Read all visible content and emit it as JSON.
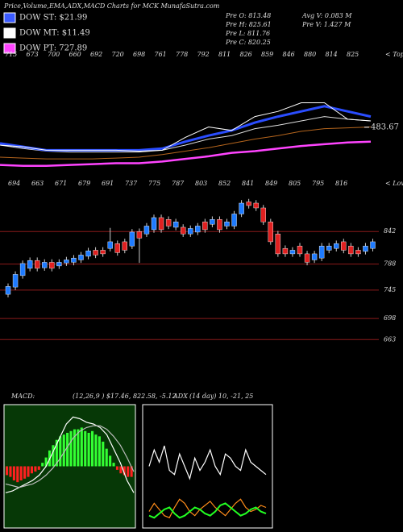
{
  "header": {
    "title": "Price,Volume,EMA,ADX,MACD Charts for MCK MunafaSutra.com",
    "legend": [
      {
        "label": "DOW ST: $21.99",
        "color": "#3b5bff"
      },
      {
        "label": "DOW MT: $11.49",
        "color": "#ffffff"
      },
      {
        "label": "DOW PT: 727.89",
        "color": "#ff44ff"
      }
    ],
    "stats": [
      "Pre  O: 813.48",
      "Pre  H: 825.61",
      "Pre  L: 811.76",
      "Pre  C: 820.25"
    ],
    "stats2": [
      "Avg V: 0.083 M",
      "Pre  V: 1.427 M"
    ]
  },
  "chart_data": [
    {
      "type": "line",
      "tops_label": "< Tops",
      "lows_label": "< Lows",
      "tops": [
        715,
        673,
        700,
        660,
        692,
        720,
        698,
        761,
        778,
        792,
        811,
        826,
        859,
        846,
        880,
        814,
        825
      ],
      "lows": [
        694,
        663,
        671,
        679,
        691,
        737,
        775,
        787,
        803,
        852,
        841,
        849,
        805,
        795,
        816
      ],
      "ylim": [
        435,
        575
      ],
      "yticks": [
        483.67
      ],
      "series": [
        {
          "color": "#ff44ff",
          "values": [
            440,
            439,
            439,
            440,
            441,
            442,
            442,
            444,
            447,
            450,
            454,
            456,
            459,
            462,
            464,
            466,
            467
          ]
        },
        {
          "color": "#b5651d",
          "values": [
            449,
            448,
            447,
            447,
            447,
            448,
            449,
            452,
            456,
            460,
            465,
            470,
            474,
            479,
            482,
            483,
            484
          ]
        },
        {
          "color": "#dddddd",
          "values": [
            463,
            459,
            456,
            455,
            455,
            455,
            455,
            457,
            463,
            470,
            474,
            482,
            486,
            491,
            496,
            493,
            491
          ]
        },
        {
          "color": "#2a4dff",
          "values": [
            465,
            461,
            457,
            457,
            457,
            457,
            457,
            459,
            467,
            474,
            480,
            489,
            496,
            502,
            508,
            502,
            496
          ]
        },
        {
          "color": "#ffffff",
          "values": [
            463,
            461,
            457,
            457,
            457,
            457,
            456,
            457,
            472,
            484,
            480,
            496,
            502,
            512,
            512,
            493,
            491
          ]
        }
      ]
    },
    {
      "type": "candlestick",
      "ylim": [
        598,
        905
      ],
      "yticks": [
        842,
        788,
        745,
        698,
        663
      ],
      "up_color": "#1e7bff",
      "down_color": "#e02020",
      "grid_color": "#8b1a1a",
      "open": [
        738,
        750,
        769,
        781,
        794,
        782,
        791,
        785,
        790,
        791,
        795,
        801,
        811,
        811,
        814,
        822,
        825,
        818,
        842,
        838,
        845,
        865,
        862,
        849,
        849,
        838,
        841,
        858,
        854,
        862,
        851,
        851,
        871,
        891,
        889,
        881,
        858,
        838,
        814,
        805,
        818,
        805,
        795,
        798,
        811,
        814,
        825,
        818,
        811,
        809,
        814
      ],
      "high": [
        756,
        776,
        794,
        799,
        799,
        796,
        796,
        796,
        800,
        803,
        808,
        815,
        816,
        816,
        848,
        827,
        830,
        846,
        847,
        856,
        870,
        870,
        867,
        863,
        854,
        852,
        856,
        863,
        867,
        867,
        863,
        876,
        894,
        896,
        894,
        886,
        863,
        843,
        819,
        816,
        823,
        810,
        810,
        823,
        823,
        827,
        830,
        823,
        816,
        823,
        830
      ],
      "low": [
        733,
        745,
        764,
        776,
        776,
        777,
        776,
        780,
        785,
        786,
        790,
        796,
        798,
        800,
        809,
        802,
        806,
        813,
        790,
        833,
        840,
        840,
        846,
        844,
        833,
        833,
        836,
        840,
        849,
        840,
        846,
        846,
        866,
        880,
        876,
        853,
        820,
        800,
        800,
        800,
        800,
        786,
        790,
        793,
        806,
        809,
        806,
        800,
        800,
        804,
        809
      ],
      "close": [
        751,
        771,
        789,
        794,
        781,
        791,
        781,
        791,
        795,
        798,
        803,
        810,
        803,
        805,
        825,
        807,
        811,
        841,
        831,
        851,
        865,
        845,
        851,
        858,
        838,
        847,
        851,
        845,
        862,
        845,
        858,
        871,
        889,
        885,
        881,
        858,
        825,
        805,
        805,
        811,
        805,
        791,
        805,
        818,
        818,
        822,
        811,
        805,
        805,
        818,
        825
      ]
    },
    {
      "type": "macd",
      "title": "MACD:",
      "subtitle": "(12,26,9 ) $17.46, 822.58, -5.12",
      "ylim": [
        -35,
        35
      ],
      "background": "#063806",
      "up_color": "#33ff33",
      "down_color": "#ff2020",
      "histogram": [
        -5,
        -6,
        -8,
        -9,
        -8,
        -7,
        -6,
        -4,
        -3,
        -2,
        2,
        5,
        9,
        12,
        15,
        17,
        18,
        19,
        20,
        21,
        21,
        22,
        20,
        19,
        20,
        18,
        17,
        14,
        10,
        6,
        2,
        -2,
        -4,
        -5,
        -6,
        -6
      ],
      "series": [
        {
          "color": "#ffffff",
          "values": [
            -15,
            -14,
            -12,
            -10,
            -8,
            -5,
            0,
            8,
            16,
            24,
            28,
            27,
            25,
            24,
            22,
            18,
            10,
            2,
            -8,
            -15
          ]
        },
        {
          "color": "#bbbbbb",
          "values": [
            -10,
            -11,
            -12,
            -11,
            -10,
            -8,
            -5,
            -1,
            4,
            10,
            16,
            20,
            22,
            23,
            23,
            21,
            17,
            12,
            5,
            -3
          ]
        }
      ]
    },
    {
      "type": "adx",
      "title": "ADX",
      "subtitle": "(14 day) 10, -21, 25",
      "ylim": [
        0,
        60
      ],
      "series": [
        {
          "color": "#ffffff",
          "values": [
            30,
            38,
            32,
            40,
            28,
            26,
            36,
            30,
            24,
            34,
            28,
            32,
            38,
            30,
            26,
            36,
            34,
            30,
            28,
            38,
            32,
            30,
            28,
            26
          ]
        },
        {
          "color": "#ff8c1a",
          "values": [
            8,
            12,
            9,
            6,
            5,
            10,
            14,
            12,
            8,
            6,
            9,
            11,
            13,
            10,
            8,
            6,
            9,
            12,
            14,
            10,
            8,
            9,
            11,
            10
          ]
        },
        {
          "color": "#22ff22",
          "values": [
            6,
            5,
            7,
            9,
            10,
            7,
            5,
            6,
            8,
            10,
            9,
            7,
            6,
            8,
            11,
            12,
            10,
            8,
            6,
            7,
            9,
            10,
            8,
            7
          ]
        }
      ]
    }
  ]
}
